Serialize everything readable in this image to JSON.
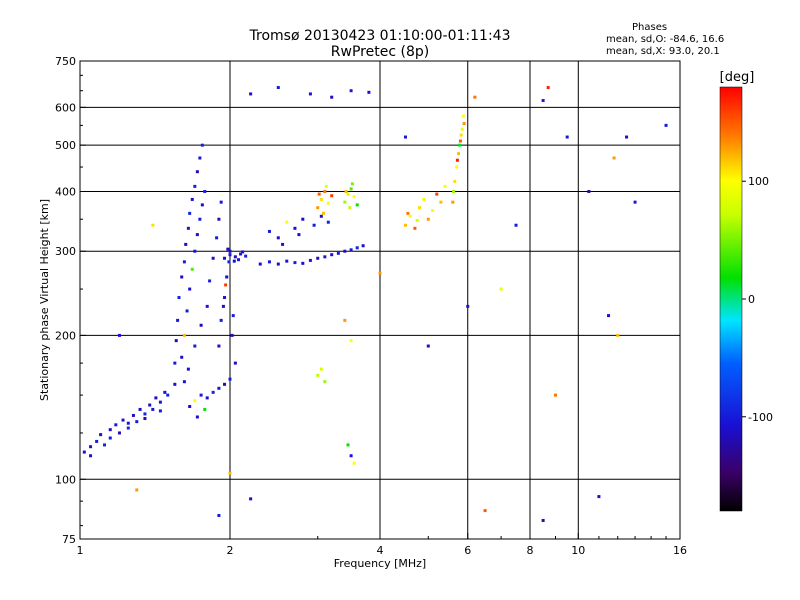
{
  "header": {
    "title": "Tromsø 20130423 01:10:00-01:11:43",
    "subtitle": "RwPretec (8p)"
  },
  "phases": {
    "title": "Phases",
    "line_o": "mean, sd,O: -84.6, 16.6",
    "line_x": "mean, sd,X:  93.0, 20.1"
  },
  "colorbar": {
    "label": "[deg]",
    "ticks": [
      100,
      0,
      -100
    ],
    "range": [
      -180,
      180
    ]
  },
  "chart_data": {
    "type": "scatter",
    "xlabel": "Frequency [MHz]",
    "ylabel": "Stationary phase Virtual Height [km]",
    "xscale": "log",
    "yscale": "log",
    "xlim": [
      1,
      16
    ],
    "ylim": [
      75,
      750
    ],
    "xticks": [
      1,
      2,
      4,
      6,
      8,
      10,
      16
    ],
    "yticks": [
      75,
      100,
      200,
      300,
      400,
      500,
      600,
      750
    ],
    "grid": true,
    "points": [
      [
        1.02,
        114,
        -110
      ],
      [
        1.05,
        117,
        -105
      ],
      [
        1.08,
        120,
        -100
      ],
      [
        1.1,
        124,
        -115
      ],
      [
        1.12,
        118,
        -95
      ],
      [
        1.15,
        127,
        -110
      ],
      [
        1.18,
        130,
        -100
      ],
      [
        1.2,
        125,
        -120
      ],
      [
        1.22,
        133,
        -105
      ],
      [
        1.25,
        128,
        -90
      ],
      [
        1.28,
        136,
        -110
      ],
      [
        1.3,
        132,
        -100
      ],
      [
        1.32,
        140,
        -115
      ],
      [
        1.35,
        137,
        -95
      ],
      [
        1.38,
        143,
        -110
      ],
      [
        1.4,
        140,
        -100
      ],
      [
        1.42,
        148,
        -120
      ],
      [
        1.45,
        145,
        -105
      ],
      [
        1.48,
        152,
        -110
      ],
      [
        1.5,
        150,
        -95
      ],
      [
        1.05,
        112,
        -110
      ],
      [
        1.15,
        122,
        -100
      ],
      [
        1.25,
        131,
        -105
      ],
      [
        1.35,
        134,
        -115
      ],
      [
        1.45,
        139,
        -100
      ],
      [
        1.55,
        158,
        -110
      ],
      [
        1.55,
        175,
        -100
      ],
      [
        1.56,
        195,
        -120
      ],
      [
        1.57,
        215,
        -105
      ],
      [
        1.58,
        240,
        -95
      ],
      [
        1.6,
        265,
        -110
      ],
      [
        1.62,
        285,
        -100
      ],
      [
        1.63,
        310,
        -115
      ],
      [
        1.65,
        335,
        -105
      ],
      [
        1.66,
        360,
        -95
      ],
      [
        1.68,
        385,
        -110
      ],
      [
        1.7,
        410,
        -100
      ],
      [
        1.72,
        440,
        -120
      ],
      [
        1.74,
        470,
        -105
      ],
      [
        1.76,
        500,
        -95
      ],
      [
        1.6,
        180,
        -110
      ],
      [
        1.62,
        200,
        120
      ],
      [
        1.64,
        225,
        -100
      ],
      [
        1.66,
        250,
        -110
      ],
      [
        1.68,
        275,
        40
      ],
      [
        1.7,
        300,
        -105
      ],
      [
        1.72,
        325,
        -115
      ],
      [
        1.74,
        350,
        -100
      ],
      [
        1.76,
        375,
        -110
      ],
      [
        1.78,
        400,
        -95
      ],
      [
        1.62,
        160,
        -105
      ],
      [
        1.65,
        170,
        -110
      ],
      [
        1.7,
        190,
        -100
      ],
      [
        1.75,
        210,
        -115
      ],
      [
        1.8,
        230,
        -105
      ],
      [
        1.82,
        260,
        -95
      ],
      [
        1.85,
        290,
        -110
      ],
      [
        1.88,
        320,
        -100
      ],
      [
        1.9,
        350,
        -120
      ],
      [
        1.92,
        380,
        -105
      ],
      [
        1.66,
        142,
        -110
      ],
      [
        1.7,
        146,
        100
      ],
      [
        1.75,
        150,
        -100
      ],
      [
        1.8,
        148,
        -110
      ],
      [
        1.85,
        152,
        -95
      ],
      [
        1.9,
        155,
        -105
      ],
      [
        1.95,
        158,
        -115
      ],
      [
        2.0,
        162,
        -100
      ],
      [
        1.72,
        135,
        -110
      ],
      [
        1.78,
        140,
        20
      ],
      [
        1.95,
        290,
        -110
      ],
      [
        2.0,
        295,
        -100
      ],
      [
        2.05,
        292,
        -115
      ],
      [
        2.1,
        296,
        -105
      ],
      [
        2.15,
        293,
        -95
      ],
      [
        2.0,
        300,
        -110
      ],
      [
        2.08,
        288,
        -100
      ],
      [
        1.98,
        303,
        -120
      ],
      [
        2.12,
        299,
        -105
      ],
      [
        2.04,
        286,
        -110
      ],
      [
        1.9,
        190,
        -110
      ],
      [
        1.92,
        215,
        -100
      ],
      [
        1.95,
        240,
        -105
      ],
      [
        1.97,
        265,
        -115
      ],
      [
        1.99,
        285,
        -95
      ],
      [
        2.02,
        200,
        -110
      ],
      [
        2.03,
        220,
        -100
      ],
      [
        2.05,
        175,
        -115
      ],
      [
        1.96,
        255,
        160
      ],
      [
        1.94,
        230,
        -110
      ],
      [
        2.3,
        282,
        -110
      ],
      [
        2.4,
        285,
        -100
      ],
      [
        2.5,
        282,
        -115
      ],
      [
        2.6,
        286,
        -105
      ],
      [
        2.7,
        284,
        -95
      ],
      [
        2.8,
        283,
        -110
      ],
      [
        2.9,
        287,
        -100
      ],
      [
        3.0,
        290,
        -120
      ],
      [
        3.1,
        292,
        -105
      ],
      [
        3.2,
        295,
        -110
      ],
      [
        3.3,
        297,
        -100
      ],
      [
        3.4,
        300,
        -115
      ],
      [
        3.5,
        302,
        -105
      ],
      [
        3.6,
        305,
        -95
      ],
      [
        3.7,
        308,
        -110
      ],
      [
        2.4,
        330,
        -100
      ],
      [
        2.5,
        320,
        -110
      ],
      [
        2.6,
        345,
        100
      ],
      [
        2.7,
        335,
        -105
      ],
      [
        2.8,
        350,
        -115
      ],
      [
        2.95,
        340,
        -100
      ],
      [
        3.05,
        355,
        -110
      ],
      [
        3.15,
        345,
        -95
      ],
      [
        2.55,
        310,
        -105
      ],
      [
        2.75,
        325,
        -110
      ],
      [
        3.0,
        370,
        130
      ],
      [
        3.05,
        385,
        110
      ],
      [
        3.1,
        400,
        140
      ],
      [
        3.15,
        378,
        100
      ],
      [
        3.2,
        392,
        160
      ],
      [
        3.08,
        360,
        120
      ],
      [
        3.12,
        410,
        90
      ],
      [
        3.02,
        395,
        150
      ],
      [
        3.4,
        380,
        60
      ],
      [
        3.45,
        395,
        80
      ],
      [
        3.5,
        405,
        40
      ],
      [
        3.55,
        390,
        100
      ],
      [
        3.6,
        375,
        20
      ],
      [
        3.48,
        370,
        70
      ],
      [
        3.52,
        415,
        50
      ],
      [
        3.42,
        400,
        120
      ],
      [
        4.5,
        340,
        120
      ],
      [
        4.6,
        355,
        100
      ],
      [
        4.7,
        335,
        150
      ],
      [
        4.8,
        370,
        110
      ],
      [
        4.9,
        385,
        90
      ],
      [
        5.0,
        350,
        130
      ],
      [
        5.1,
        365,
        100
      ],
      [
        5.2,
        395,
        160
      ],
      [
        5.3,
        380,
        120
      ],
      [
        5.4,
        410,
        100
      ],
      [
        4.55,
        360,
        140
      ],
      [
        4.75,
        348,
        80
      ],
      [
        5.6,
        380,
        130
      ],
      [
        5.65,
        420,
        110
      ],
      [
        5.7,
        450,
        100
      ],
      [
        5.75,
        480,
        120
      ],
      [
        5.8,
        510,
        150
      ],
      [
        5.85,
        540,
        90
      ],
      [
        5.88,
        575,
        100
      ],
      [
        5.62,
        400,
        60
      ],
      [
        5.72,
        465,
        170
      ],
      [
        5.78,
        500,
        10
      ],
      [
        5.82,
        525,
        110
      ],
      [
        5.9,
        555,
        130
      ],
      [
        3.05,
        170,
        80
      ],
      [
        3.1,
        160,
        60
      ],
      [
        3.0,
        165,
        70
      ],
      [
        3.45,
        118,
        20
      ],
      [
        3.5,
        112,
        -110
      ],
      [
        3.55,
        108,
        100
      ],
      [
        3.4,
        215,
        130
      ],
      [
        3.5,
        195,
        100
      ],
      [
        2.2,
        640,
        -110
      ],
      [
        2.5,
        660,
        -100
      ],
      [
        2.9,
        640,
        -105
      ],
      [
        3.2,
        630,
        -115
      ],
      [
        3.5,
        650,
        -100
      ],
      [
        3.8,
        645,
        -110
      ],
      [
        6.2,
        630,
        140
      ],
      [
        8.5,
        620,
        -100
      ],
      [
        12.5,
        520,
        -110
      ],
      [
        15.0,
        550,
        -100
      ],
      [
        12.0,
        200,
        120
      ],
      [
        11.5,
        220,
        -110
      ],
      [
        7.5,
        340,
        -100
      ],
      [
        11.8,
        470,
        130
      ],
      [
        13.0,
        380,
        -105
      ],
      [
        10.5,
        400,
        -115
      ],
      [
        1.2,
        200,
        -110
      ],
      [
        1.4,
        340,
        110
      ],
      [
        1.3,
        95,
        130
      ],
      [
        1.9,
        84,
        -100
      ],
      [
        2.0,
        103,
        120
      ],
      [
        2.2,
        91,
        -110
      ],
      [
        6.5,
        86,
        150
      ],
      [
        8.5,
        82,
        -120
      ],
      [
        11.0,
        92,
        -110
      ],
      [
        9.5,
        520,
        -100
      ],
      [
        6.0,
        230,
        -105
      ],
      [
        7.0,
        250,
        90
      ],
      [
        8.7,
        660,
        170
      ],
      [
        5.0,
        190,
        -110
      ],
      [
        4.5,
        520,
        -100
      ],
      [
        4.0,
        270,
        130
      ],
      [
        9.0,
        150,
        140
      ]
    ]
  }
}
